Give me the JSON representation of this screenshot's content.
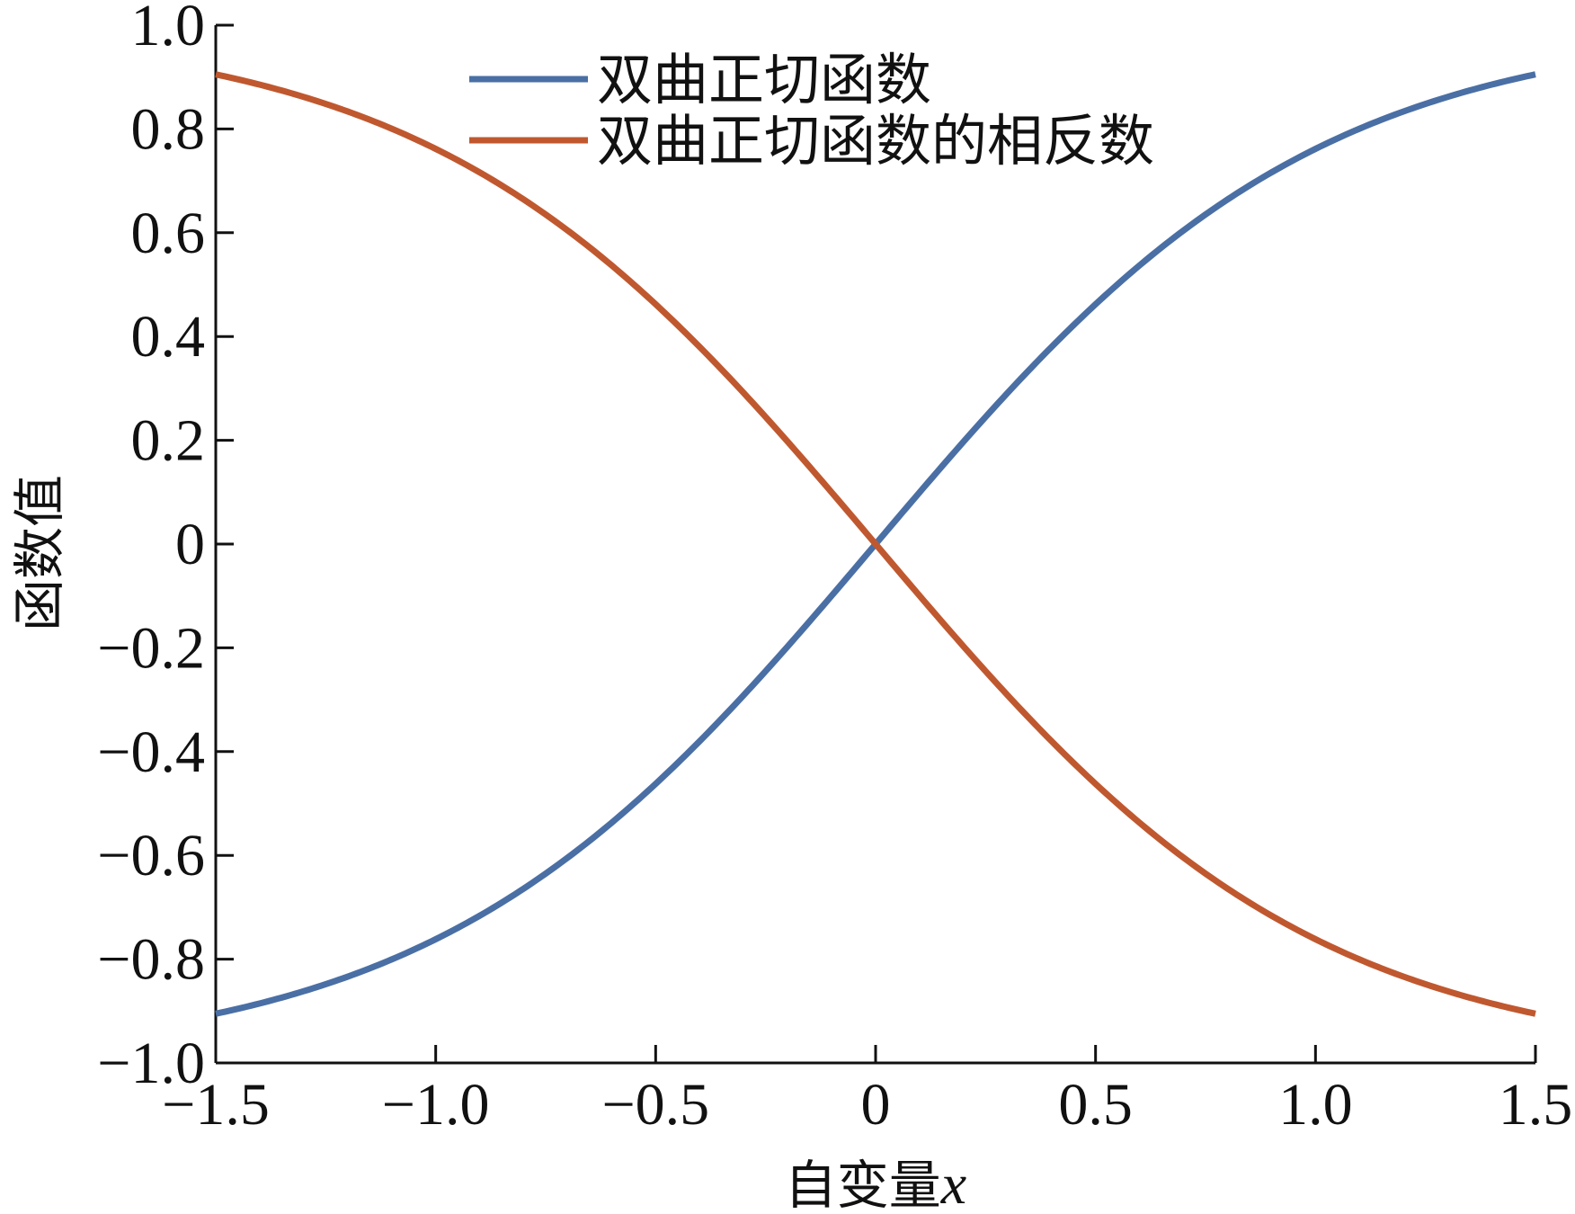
{
  "chart_data": {
    "type": "line",
    "title": "",
    "xlabel": "自变量x",
    "xlabel_main": "自变量",
    "xlabel_var": "x",
    "ylabel": "函数值",
    "xlim": [
      -1.5,
      1.5
    ],
    "ylim": [
      -1.0,
      1.0
    ],
    "grid": false,
    "legend_position": "top-center",
    "x_ticks": [
      -1.5,
      -1.0,
      -0.5,
      0,
      0.5,
      1.0,
      1.5
    ],
    "x_tick_labels": [
      "−1.5",
      "−1.0",
      "−0.5",
      "0",
      "0.5",
      "1.0",
      "1.5"
    ],
    "y_ticks": [
      -1.0,
      -0.8,
      -0.6,
      -0.4,
      -0.2,
      0,
      0.2,
      0.4,
      0.6,
      0.8,
      1.0
    ],
    "y_tick_labels": [
      "−1.0",
      "−0.8",
      "−0.6",
      "−0.4",
      "−0.2",
      "0",
      "0.2",
      "0.4",
      "0.6",
      "0.8",
      "1.0"
    ],
    "x": [
      -1.5,
      -1.25,
      -1.0,
      -0.75,
      -0.5,
      -0.25,
      0,
      0.25,
      0.5,
      0.75,
      1.0,
      1.25,
      1.5
    ],
    "series": [
      {
        "name": "双曲正切函数",
        "color": "#4a6fa5",
        "values": [
          -0.905,
          -0.848,
          -0.762,
          -0.635,
          -0.462,
          -0.245,
          0,
          0.245,
          0.462,
          0.635,
          0.762,
          0.848,
          0.905
        ]
      },
      {
        "name": "双曲正切函数的相反数",
        "color": "#c0582f",
        "values": [
          0.905,
          0.848,
          0.762,
          0.635,
          0.462,
          0.245,
          0,
          -0.245,
          -0.462,
          -0.635,
          -0.762,
          -0.848,
          -0.905
        ]
      }
    ]
  }
}
